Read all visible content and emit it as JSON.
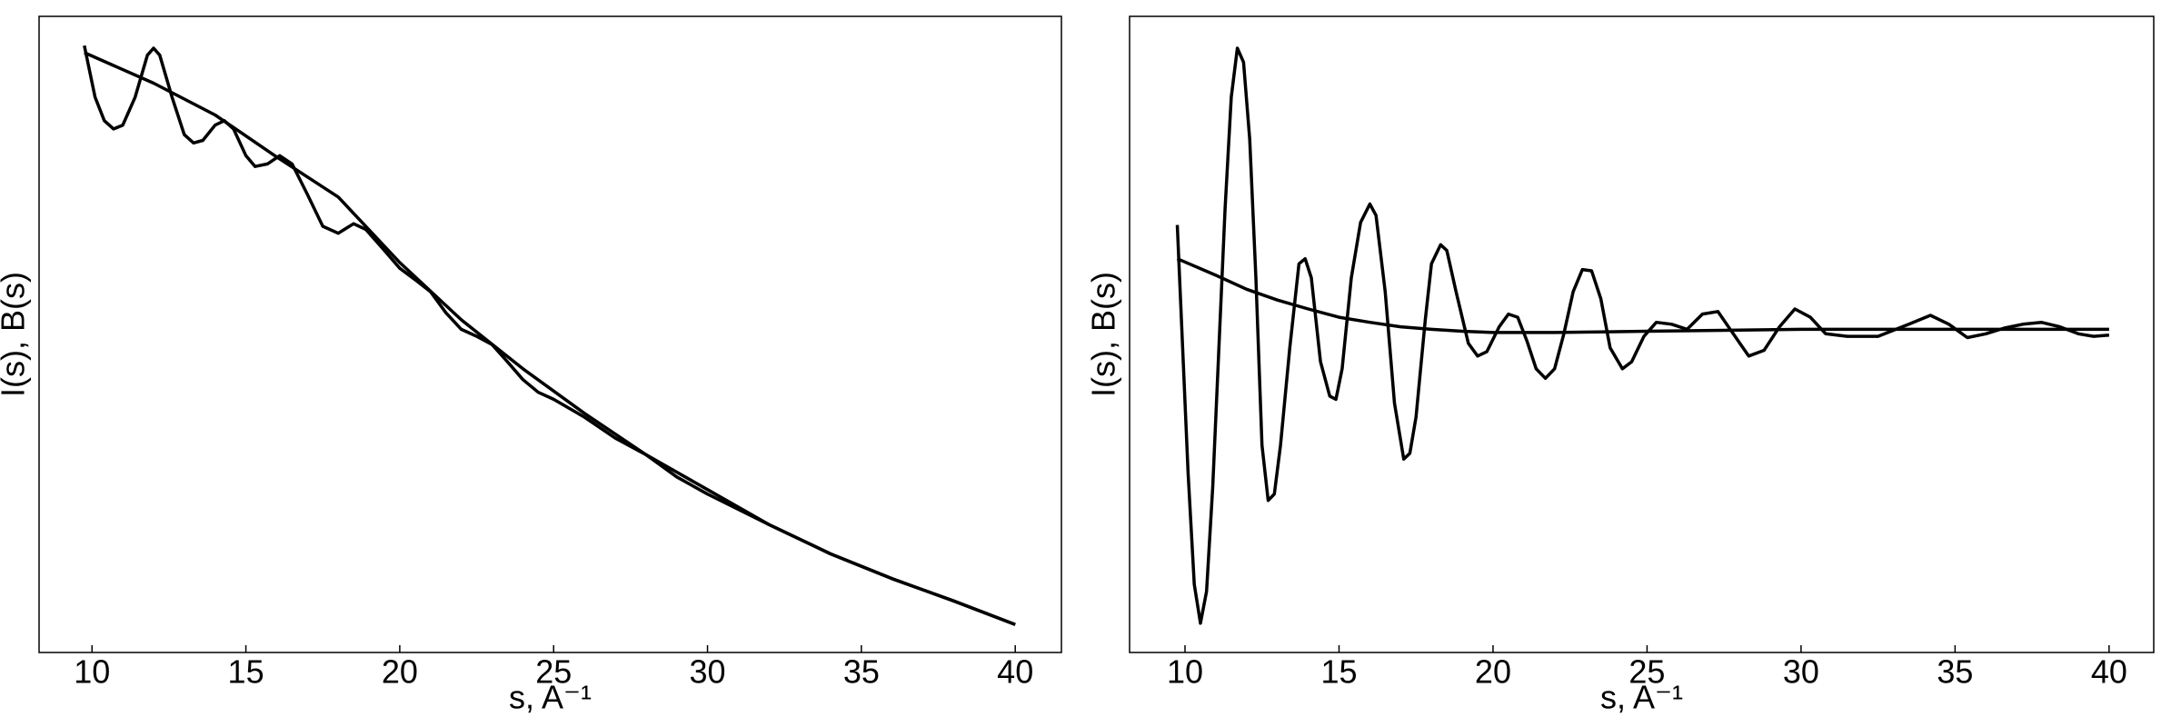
{
  "chart_data": [
    {
      "type": "line",
      "xlabel": "s, A⁻¹",
      "ylabel": "I(s), B(s)",
      "xlim": [
        8.28,
        41.5
      ],
      "ylim": [
        0,
        100
      ],
      "xticks": [
        10,
        15,
        20,
        25,
        30,
        35,
        40
      ],
      "series": [
        {
          "color": "#000000",
          "x": [
            9.75,
            10.1,
            10.4,
            10.7,
            11.0,
            11.4,
            11.8,
            12.0,
            12.2,
            12.6,
            13.0,
            13.3,
            13.6,
            14.0,
            14.3,
            14.6,
            15.0,
            15.3,
            15.7,
            16.1,
            16.5,
            17.0,
            17.5,
            18.0,
            18.5,
            18.9,
            19.5,
            20.0,
            20.5,
            21.0,
            21.5,
            22.0,
            22.5,
            23.0,
            23.5,
            24.0,
            24.5,
            25.0,
            26,
            27,
            28,
            29,
            30,
            32,
            34,
            36,
            38,
            40
          ],
          "values": [
            95.4,
            87.3,
            83.6,
            82.3,
            82.9,
            87.3,
            93.9,
            95.0,
            93.9,
            87.3,
            81.4,
            80.1,
            80.5,
            82.9,
            83.6,
            82.3,
            78.1,
            76.4,
            76.8,
            78.1,
            76.8,
            72.0,
            67.0,
            65.9,
            67.4,
            66.5,
            63.2,
            60.4,
            58.6,
            56.7,
            53.4,
            50.8,
            49.7,
            48.4,
            45.7,
            42.9,
            40.9,
            39.8,
            37.0,
            33.7,
            31.1,
            27.6,
            24.9,
            20.1,
            15.5,
            11.6,
            8.1,
            4.4
          ]
        },
        {
          "color": "#000000",
          "x": [
            9.75,
            12,
            14,
            16,
            18,
            20,
            22,
            24,
            26,
            28,
            30,
            32,
            34,
            36,
            38,
            40
          ],
          "values": [
            94.3,
            89.5,
            84.5,
            77.9,
            71.6,
            61.3,
            52.3,
            44.6,
            37.6,
            31.1,
            25.6,
            20.1,
            15.5,
            11.6,
            8.1,
            4.4
          ]
        }
      ]
    },
    {
      "type": "line",
      "xlabel": "s, A⁻¹",
      "ylabel": "I(s), B(s)",
      "xlim": [
        8.2,
        41.45
      ],
      "ylim": [
        0,
        100
      ],
      "xticks": [
        10,
        15,
        20,
        25,
        30,
        35,
        40
      ],
      "series": [
        {
          "color": "#000000",
          "x": [
            9.75,
            10.1,
            10.3,
            10.5,
            10.7,
            10.9,
            11.1,
            11.3,
            11.5,
            11.7,
            11.9,
            12.1,
            12.3,
            12.5,
            12.7,
            12.9,
            13.1,
            13.4,
            13.7,
            13.9,
            14.1,
            14.4,
            14.7,
            14.9,
            15.1,
            15.4,
            15.7,
            16.0,
            16.2,
            16.5,
            16.8,
            17.1,
            17.3,
            17.5,
            17.8,
            18.0,
            18.3,
            18.5,
            18.8,
            19.2,
            19.5,
            19.8,
            20.2,
            20.5,
            20.8,
            21.1,
            21.4,
            21.7,
            22.0,
            22.3,
            22.6,
            22.9,
            23.2,
            23.5,
            23.8,
            24.2,
            24.5,
            24.9,
            25.3,
            25.8,
            26.3,
            26.8,
            27.3,
            27.8,
            28.3,
            28.8,
            29.3,
            29.8,
            30.3,
            30.8,
            31.5,
            32.5,
            33.5,
            34.2,
            34.8,
            35.4,
            36.0,
            36.6,
            37.2,
            37.8,
            38.4,
            39.0,
            39.5,
            40
          ],
          "values": [
            67.2,
            28.2,
            10.7,
            4.6,
            9.6,
            26.0,
            47.9,
            69.8,
            87.3,
            95.0,
            92.8,
            80.7,
            58.9,
            32.6,
            23.9,
            24.9,
            32.6,
            47.9,
            61.1,
            61.9,
            58.9,
            45.7,
            40.3,
            39.8,
            44.6,
            58.9,
            67.6,
            70.5,
            68.7,
            56.7,
            39.2,
            30.4,
            31.3,
            37.0,
            52.3,
            61.1,
            64.1,
            63.2,
            56.7,
            48.6,
            46.6,
            47.3,
            51.2,
            53.2,
            52.7,
            49.0,
            44.6,
            43.1,
            44.6,
            50.1,
            56.7,
            60.2,
            60.0,
            55.6,
            47.9,
            44.6,
            45.7,
            49.7,
            51.9,
            51.6,
            50.8,
            53.2,
            53.6,
            50.1,
            46.6,
            47.5,
            51.2,
            54.0,
            52.7,
            50.1,
            49.7,
            49.7,
            51.6,
            53.0,
            51.6,
            49.5,
            50.1,
            51.0,
            51.6,
            51.9,
            51.2,
            50.1,
            49.7,
            49.9
          ]
        },
        {
          "color": "#000000",
          "x": [
            9.75,
            11,
            12,
            13,
            14,
            15,
            16,
            17,
            18,
            19,
            20,
            22,
            25,
            30,
            35,
            40
          ],
          "values": [
            61.9,
            59.3,
            57.1,
            55.4,
            54.0,
            52.7,
            51.9,
            51.2,
            50.8,
            50.5,
            50.3,
            50.3,
            50.5,
            50.8,
            50.8,
            50.8
          ]
        }
      ]
    }
  ]
}
